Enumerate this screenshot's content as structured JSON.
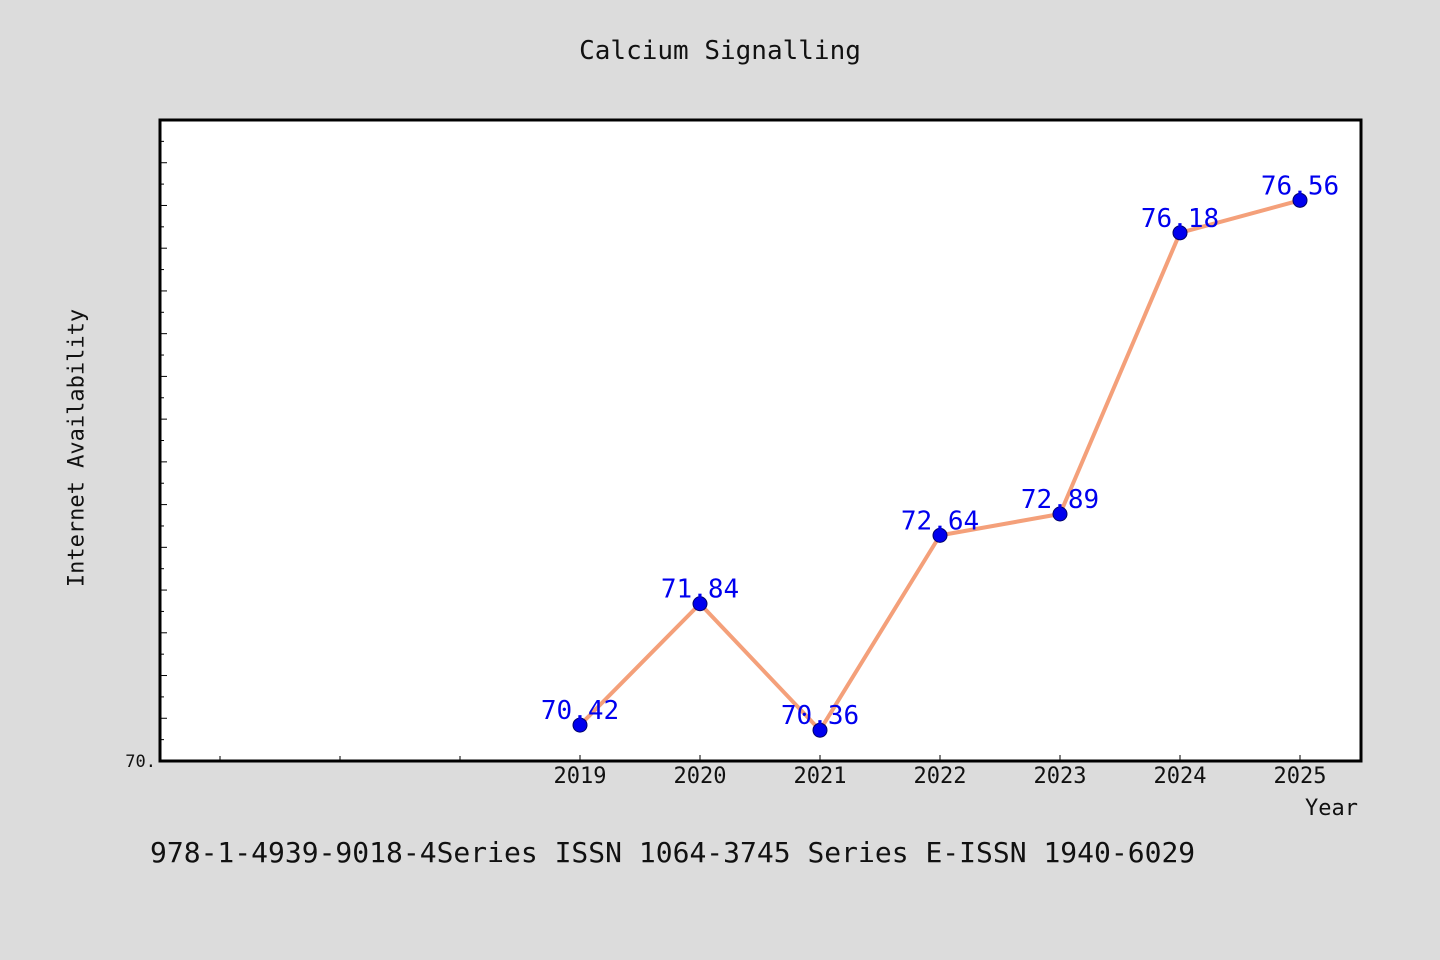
{
  "footer": {
    "text": "978-1-4939-9018-4Series ISSN 1064-3745 Series E-ISSN 1940-6029"
  },
  "chart_data": {
    "type": "line",
    "title": "Calcium Signalling",
    "xlabel": "Year",
    "ylabel": "Internet Availability",
    "x": [
      "2019",
      "2020",
      "2021",
      "2022",
      "2023",
      "2024",
      "2025"
    ],
    "series": [
      {
        "values": [
          70.42,
          71.84,
          70.36,
          72.64,
          72.89,
          76.18,
          76.56
        ],
        "data_labels": [
          "70.42",
          "71.84",
          "70.36",
          "72.64",
          "72.89",
          "76.18",
          "76.56"
        ]
      }
    ],
    "ylim": [
      70.0,
      77.5
    ],
    "y_tick_labels": [
      {
        "value": 70.0,
        "label": "70."
      }
    ],
    "grid": false,
    "legend": "none",
    "colors": {
      "line": "#f4a07a",
      "marker": "#0000ee",
      "data_label": "#0000ee",
      "plot_background": "#ffffff",
      "page_background": "#dcdcdc"
    }
  }
}
